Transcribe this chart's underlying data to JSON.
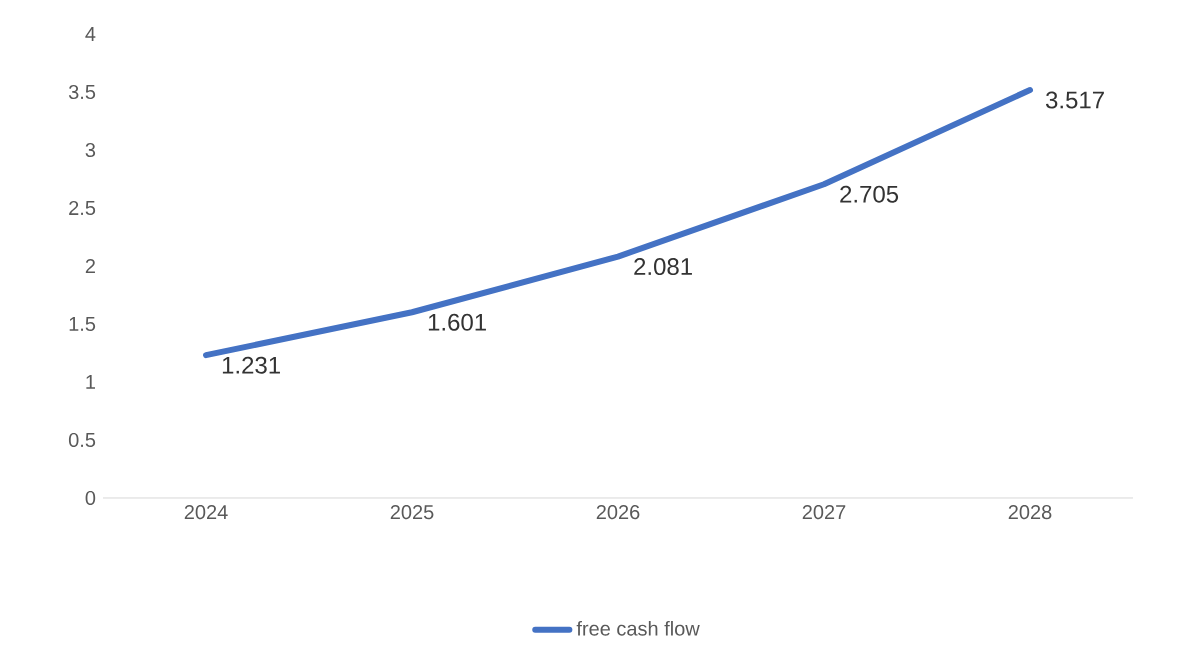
{
  "chart_data": {
    "type": "line",
    "categories": [
      "2024",
      "2025",
      "2026",
      "2027",
      "2028"
    ],
    "series": [
      {
        "name": "free cash flow",
        "color": "#4472c4",
        "values": [
          1.231,
          1.601,
          2.081,
          2.705,
          3.517
        ]
      }
    ],
    "ylim": [
      0,
      4
    ],
    "yticks": [
      0,
      0.5,
      1,
      1.5,
      2,
      2.5,
      3,
      3.5,
      4
    ],
    "data_labels": true,
    "legend": "bottom",
    "marker": "none",
    "line_style": "solid"
  }
}
